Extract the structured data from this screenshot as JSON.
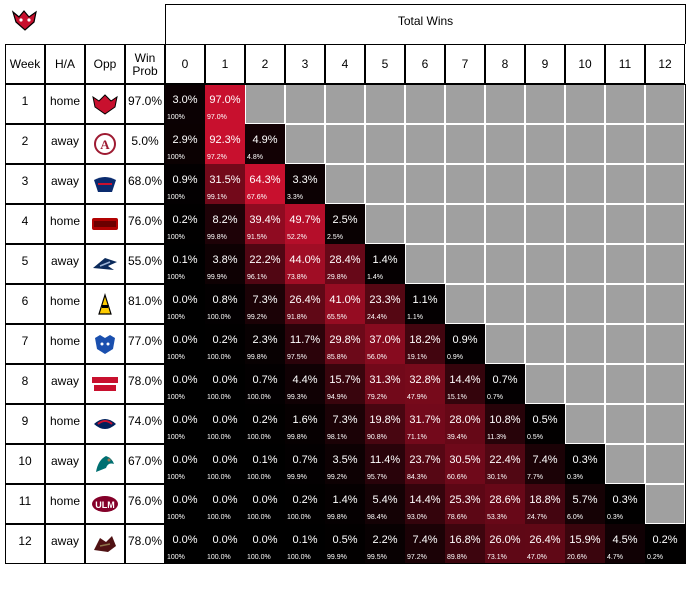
{
  "header": {
    "total_wins_label": "Total Wins",
    "col_headers": [
      "Week",
      "H/A",
      "Opp",
      "Win Prob"
    ],
    "win_columns": [
      "0",
      "1",
      "2",
      "3",
      "4",
      "5",
      "6",
      "7",
      "8",
      "9",
      "10",
      "11",
      "12"
    ]
  },
  "colors": {
    "red": "#c8102e",
    "black": "#000000",
    "gray": "#a0a0a0",
    "white": "#ffffff"
  },
  "chart_data": {
    "type": "heatmap",
    "title": "",
    "xlabel": "Total Wins",
    "ylabel": "",
    "rows": [
      {
        "week": "1",
        "ha": "home",
        "opp_icon": "redhawk-logo-icon",
        "win_prob": "97.0%",
        "values": [
          "3.0%",
          "97.0%"
        ],
        "cum": [
          "100%",
          "97.0%"
        ]
      },
      {
        "week": "2",
        "ha": "away",
        "opp_icon": "alabama-a-logo-icon",
        "win_prob": "5.0%",
        "values": [
          "2.9%",
          "92.3%",
          "4.9%"
        ],
        "cum": [
          "100%",
          "97.2%",
          "4.8%"
        ]
      },
      {
        "week": "3",
        "ha": "away",
        "opp_icon": "tulsa-logo-icon",
        "win_prob": "68.0%",
        "values": [
          "0.9%",
          "31.5%",
          "64.3%",
          "3.3%"
        ],
        "cum": [
          "100%",
          "99.1%",
          "67.6%",
          "3.3%"
        ]
      },
      {
        "week": "4",
        "ha": "home",
        "opp_icon": "unlv-logo-icon",
        "win_prob": "76.0%",
        "values": [
          "0.2%",
          "8.2%",
          "39.4%",
          "49.7%",
          "2.5%"
        ],
        "cum": [
          "100%",
          "99.8%",
          "91.5%",
          "52.2%",
          "2.5%"
        ]
      },
      {
        "week": "5",
        "ha": "away",
        "opp_icon": "georgia-southern-logo-icon",
        "win_prob": "55.0%",
        "values": [
          "0.1%",
          "3.8%",
          "22.2%",
          "44.0%",
          "28.4%",
          "1.4%"
        ],
        "cum": [
          "100%",
          "99.9%",
          "96.1%",
          "73.8%",
          "29.8%",
          "1.4%"
        ]
      },
      {
        "week": "6",
        "ha": "home",
        "opp_icon": "app-state-logo-icon",
        "win_prob": "81.0%",
        "values": [
          "0.0%",
          "0.8%",
          "7.3%",
          "26.4%",
          "41.0%",
          "23.3%",
          "1.1%"
        ],
        "cum": [
          "100%",
          "100.0%",
          "99.2%",
          "91.8%",
          "65.5%",
          "24.4%",
          "1.1%"
        ]
      },
      {
        "week": "7",
        "ha": "home",
        "opp_icon": "georgia-state-panther-logo-icon",
        "win_prob": "77.0%",
        "values": [
          "0.0%",
          "0.2%",
          "2.3%",
          "11.7%",
          "29.8%",
          "37.0%",
          "18.2%",
          "0.9%"
        ],
        "cum": [
          "100%",
          "100.0%",
          "99.8%",
          "97.5%",
          "85.8%",
          "56.0%",
          "19.1%",
          "0.9%"
        ]
      },
      {
        "week": "8",
        "ha": "away",
        "opp_icon": "ragin-cajuns-logo-icon",
        "win_prob": "78.0%",
        "values": [
          "0.0%",
          "0.0%",
          "0.7%",
          "4.4%",
          "15.7%",
          "31.3%",
          "32.8%",
          "14.4%",
          "0.7%"
        ],
        "cum": [
          "100%",
          "100.0%",
          "100.0%",
          "99.3%",
          "94.9%",
          "79.2%",
          "47.9%",
          "15.1%",
          "0.7%"
        ]
      },
      {
        "week": "9",
        "ha": "home",
        "opp_icon": "south-alabama-logo-icon",
        "win_prob": "74.0%",
        "values": [
          "0.0%",
          "0.0%",
          "0.2%",
          "1.6%",
          "7.3%",
          "19.8%",
          "31.7%",
          "28.0%",
          "10.8%",
          "0.5%"
        ],
        "cum": [
          "100%",
          "100.0%",
          "100.0%",
          "99.8%",
          "98.1%",
          "90.8%",
          "71.1%",
          "39.4%",
          "11.3%",
          "0.5%"
        ]
      },
      {
        "week": "10",
        "ha": "away",
        "opp_icon": "coastal-carolina-logo-icon",
        "win_prob": "67.0%",
        "values": [
          "0.0%",
          "0.0%",
          "0.1%",
          "0.7%",
          "3.5%",
          "11.4%",
          "23.7%",
          "30.5%",
          "22.4%",
          "7.4%",
          "0.3%"
        ],
        "cum": [
          "100%",
          "100.0%",
          "100.0%",
          "99.9%",
          "99.2%",
          "95.7%",
          "84.3%",
          "60.6%",
          "30.1%",
          "7.7%",
          "0.3%"
        ]
      },
      {
        "week": "11",
        "ha": "home",
        "opp_icon": "ulm-logo-icon",
        "win_prob": "76.0%",
        "values": [
          "0.0%",
          "0.0%",
          "0.0%",
          "0.2%",
          "1.4%",
          "5.4%",
          "14.4%",
          "25.3%",
          "28.6%",
          "18.8%",
          "5.7%",
          "0.3%"
        ],
        "cum": [
          "100%",
          "100.0%",
          "100.0%",
          "100.0%",
          "99.8%",
          "98.4%",
          "93.0%",
          "78.6%",
          "53.3%",
          "24.7%",
          "6.0%",
          "0.3%"
        ]
      },
      {
        "week": "12",
        "ha": "away",
        "opp_icon": "texas-state-bobcat-logo-icon",
        "win_prob": "78.0%",
        "values": [
          "0.0%",
          "0.0%",
          "0.0%",
          "0.1%",
          "0.5%",
          "2.2%",
          "7.4%",
          "16.8%",
          "26.0%",
          "26.4%",
          "15.9%",
          "4.5%",
          "0.2%"
        ],
        "cum": [
          "100%",
          "100.0%",
          "100.0%",
          "100.0%",
          "99.9%",
          "99.5%",
          "97.2%",
          "89.8%",
          "73.1%",
          "47.0%",
          "20.6%",
          "4.7%",
          "0.2%"
        ]
      }
    ]
  }
}
